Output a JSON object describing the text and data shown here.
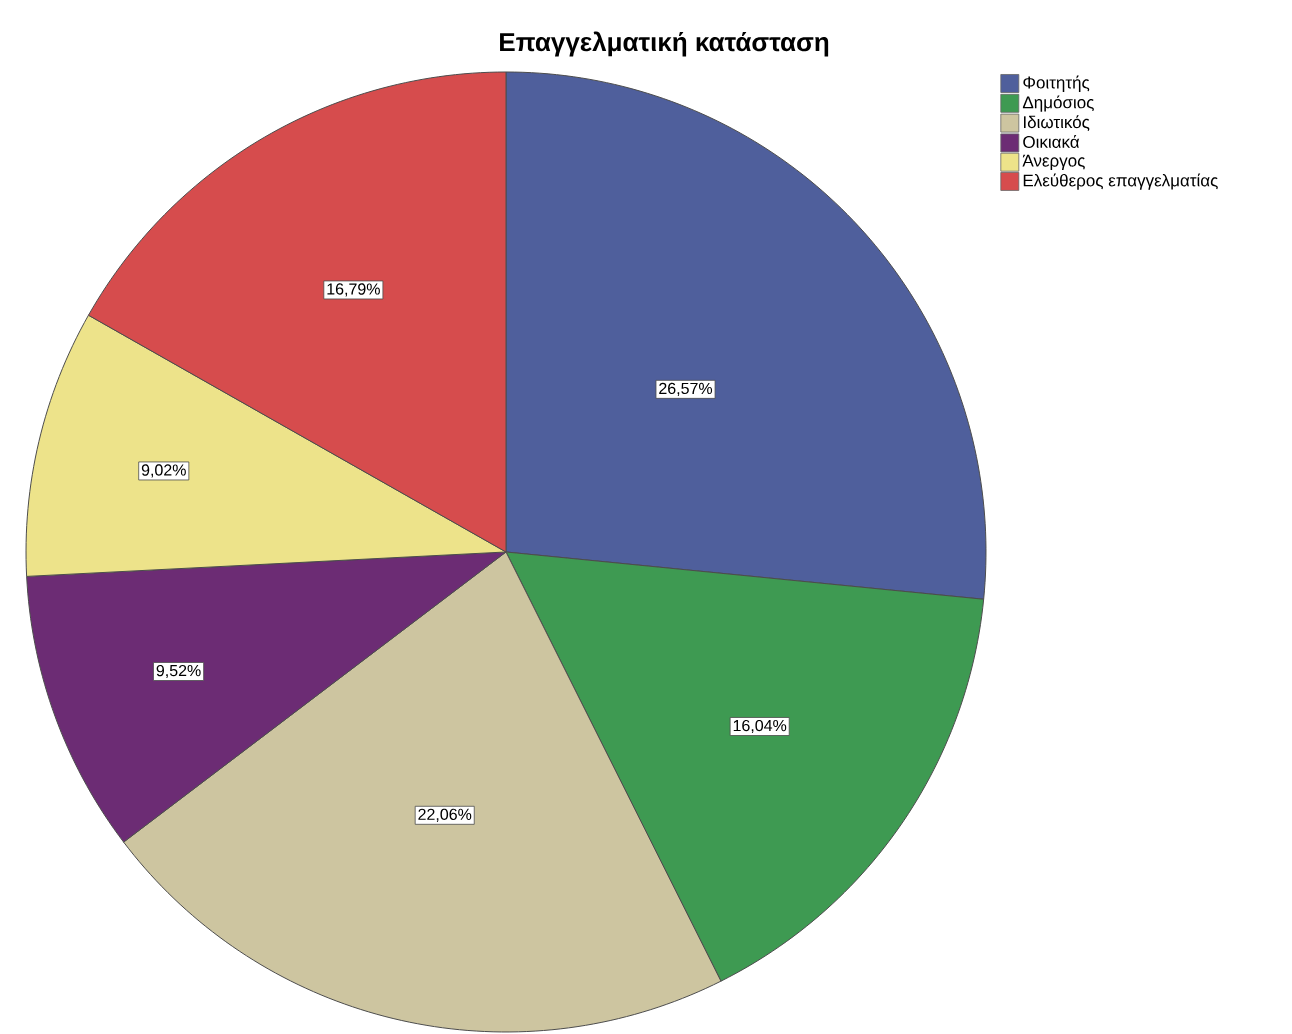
{
  "chart_data": {
    "type": "pie",
    "title": "Επαγγελματική κατάσταση",
    "categories": [
      "Φοιτητής",
      "Δημόσιος",
      "Ιδιωτικός",
      "Οικιακά",
      "Άνεργος",
      "Ελεύθερος επαγγελματίας"
    ],
    "values": [
      26.57,
      16.04,
      22.06,
      9.52,
      9.02,
      16.79
    ],
    "value_labels": [
      "26,57%",
      "16,04%",
      "22,06%",
      "9,52%",
      "9,02%",
      "16,79%"
    ],
    "colors": [
      "#4f5f9c",
      "#3e9a52",
      "#cdc5a0",
      "#6c2c74",
      "#ede38a",
      "#d64c4d"
    ],
    "legend": "top right"
  }
}
